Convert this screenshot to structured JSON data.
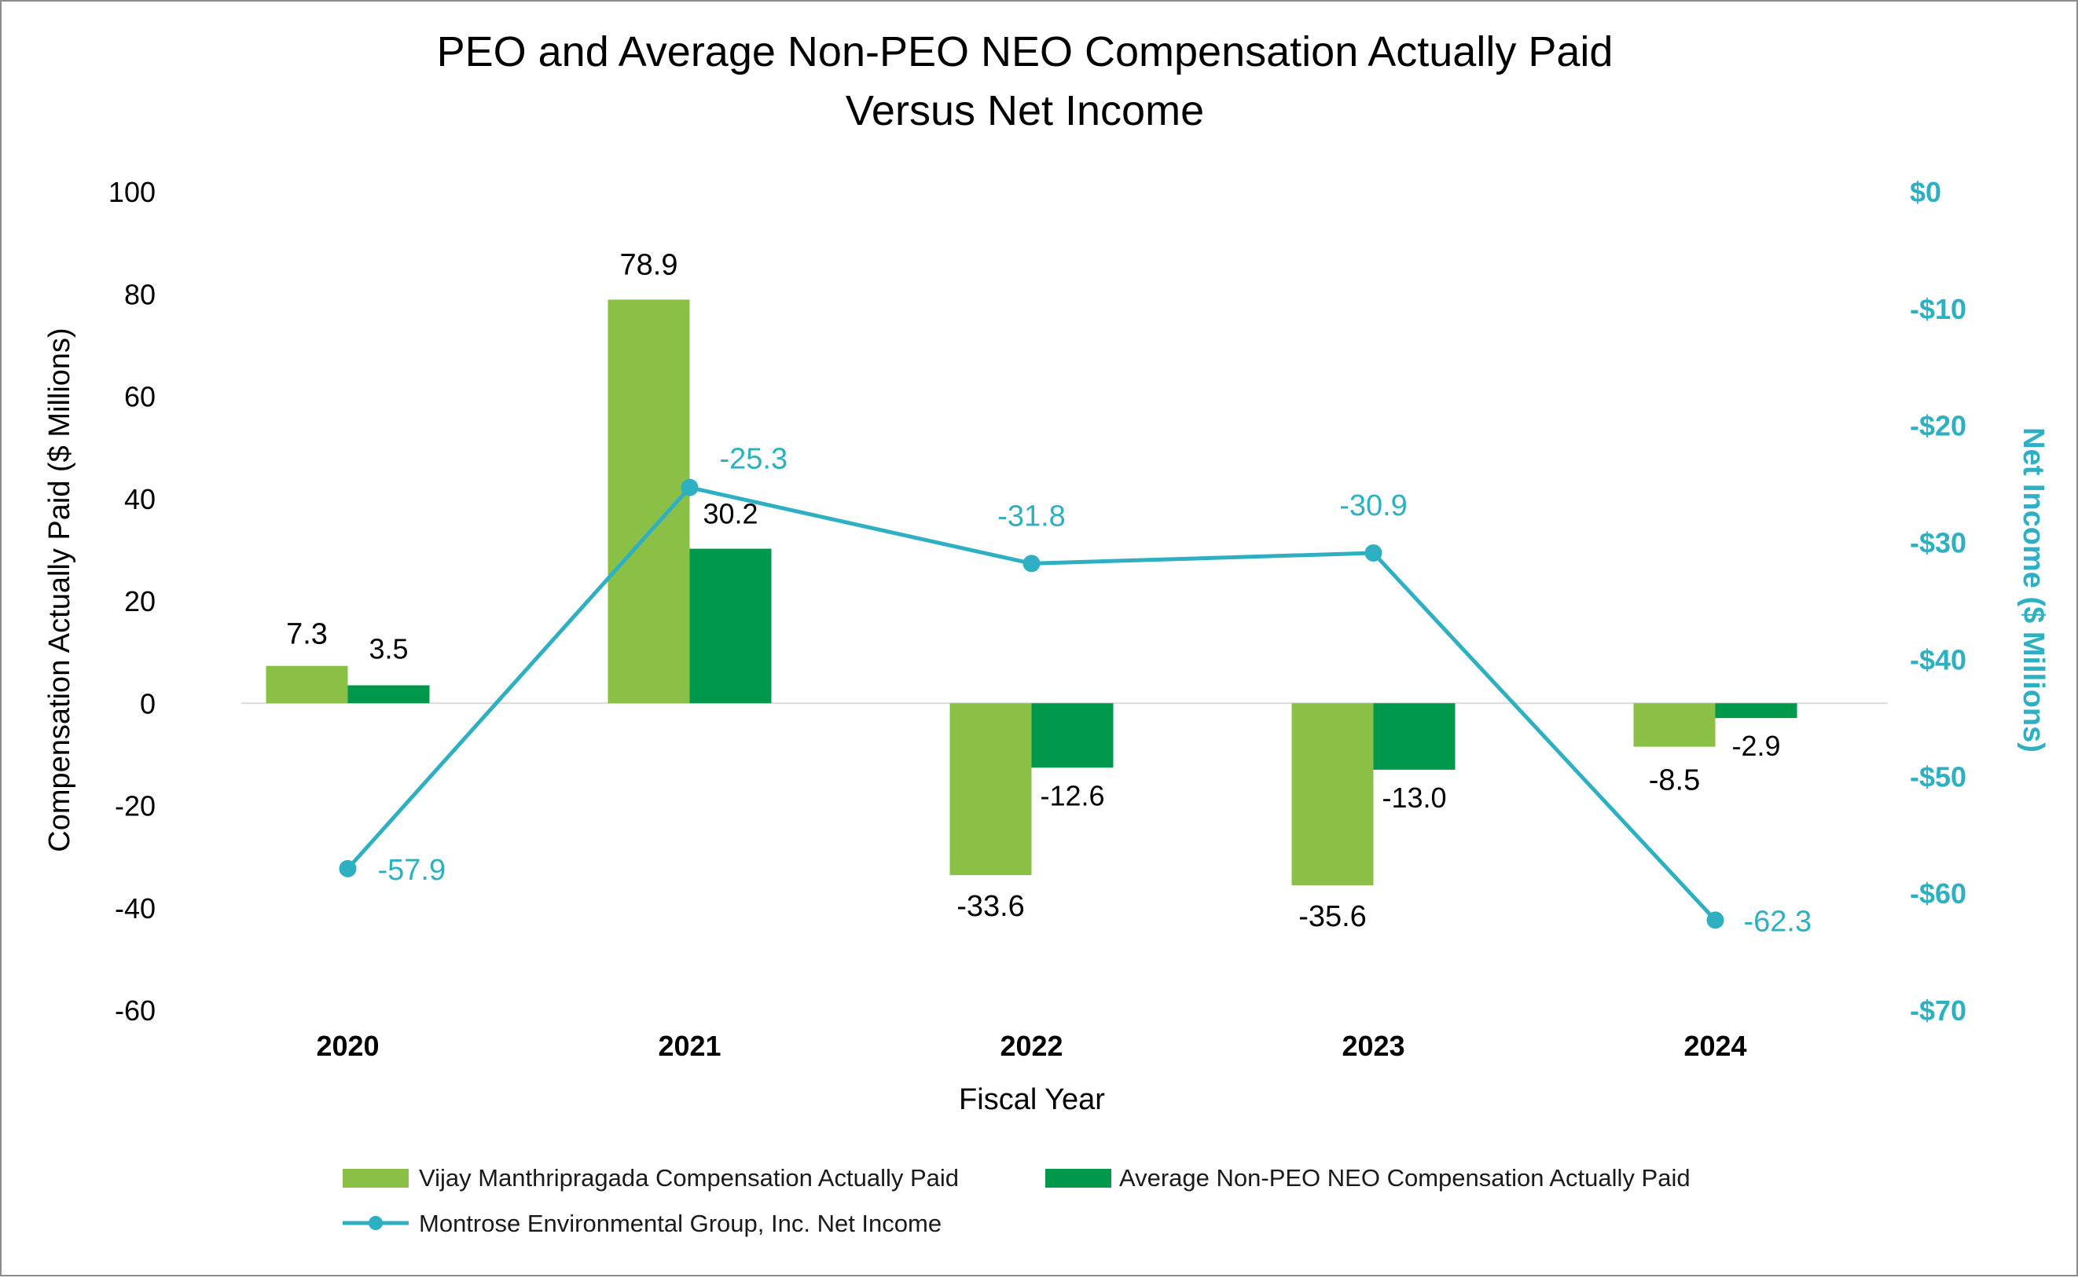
{
  "chart_data": {
    "type": "bar",
    "title_lines": [
      "PEO and Average Non-PEO NEO Compensation Actually Paid",
      "Versus Net Income"
    ],
    "xlabel": "Fiscal Year",
    "ylabel": "Compensation Actually Paid ($ Millions)",
    "y2label": "Net Income ($ Millions)",
    "categories": [
      "2020",
      "2021",
      "2022",
      "2023",
      "2024"
    ],
    "ylim": [
      -60,
      100
    ],
    "y_ticks": [
      100,
      80,
      60,
      40,
      20,
      0,
      -20,
      -40,
      -60
    ],
    "y2lim": [
      -70,
      0
    ],
    "y2_ticks": [
      0,
      -10,
      -20,
      -30,
      -40,
      -50,
      -60,
      -70
    ],
    "y2_tick_labels": [
      "$0",
      "-$10",
      "-$20",
      "-$30",
      "-$40",
      "-$50",
      "-$60",
      "-$70"
    ],
    "series": [
      {
        "name": "Vijay Manthripragada Compensation Actually Paid",
        "type": "bar",
        "axis": "left",
        "color": "#8bc047",
        "values": [
          7.3,
          78.9,
          -33.6,
          -35.6,
          -8.5
        ],
        "labels": [
          "7.3",
          "78.9",
          "-33.6",
          "-35.6",
          "-8.5"
        ]
      },
      {
        "name": "Average Non-PEO NEO Compensation Actually Paid",
        "type": "bar",
        "axis": "left",
        "color": "#00994c",
        "values": [
          3.5,
          30.2,
          -12.6,
          -13.0,
          -2.9
        ],
        "labels": [
          "3.5",
          "30.2",
          "-12.6",
          "-13.0",
          "-2.9"
        ]
      },
      {
        "name": "Montrose Environmental Group, Inc. Net Income",
        "type": "line",
        "axis": "right",
        "color": "#2eb0c2",
        "values": [
          -57.9,
          -25.3,
          -31.8,
          -30.9,
          -62.3
        ],
        "labels": [
          "-57.9",
          "-25.3",
          "-31.8",
          "-30.9",
          "-62.3"
        ]
      }
    ],
    "legend_position": "bottom",
    "grid": false
  }
}
